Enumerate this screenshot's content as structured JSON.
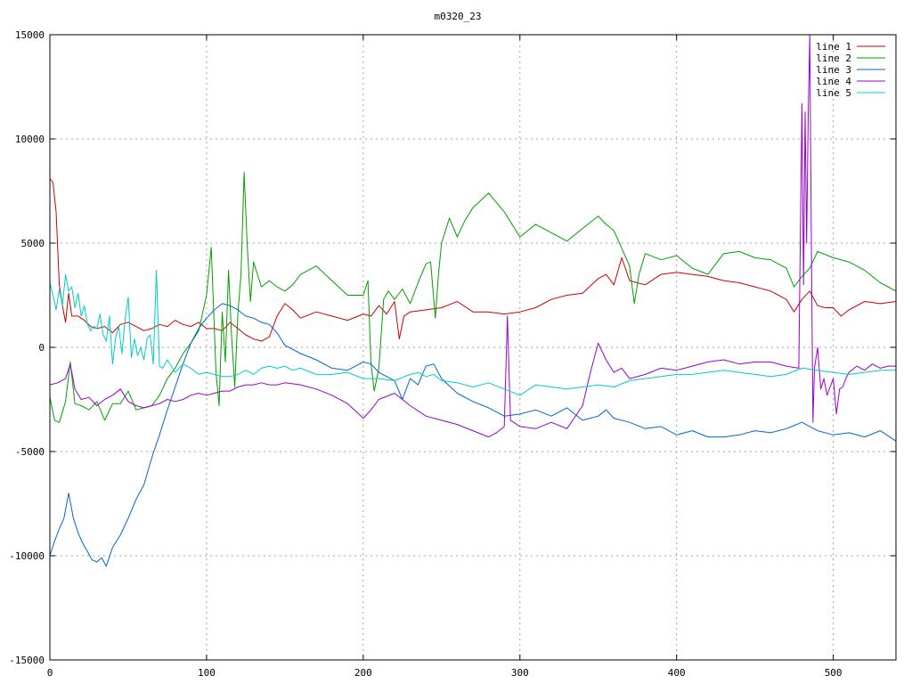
{
  "chart_data": {
    "type": "line",
    "title": "m0320_23",
    "xlabel": "",
    "ylabel": "",
    "xlim": [
      0,
      540
    ],
    "ylim": [
      -15000,
      15000
    ],
    "xticks": [
      0,
      100,
      200,
      300,
      400,
      500
    ],
    "yticks": [
      -15000,
      -10000,
      -5000,
      0,
      5000,
      10000,
      15000
    ],
    "grid": true,
    "legend_position": "top-right",
    "series": [
      {
        "name": "line 1",
        "color": "#cc0000",
        "x": [
          0,
          2,
          4,
          6,
          8,
          10,
          12,
          14,
          18,
          22,
          26,
          30,
          35,
          40,
          45,
          50,
          55,
          60,
          65,
          70,
          75,
          80,
          85,
          90,
          95,
          100,
          105,
          110,
          115,
          120,
          125,
          130,
          135,
          140,
          145,
          150,
          155,
          160,
          170,
          180,
          190,
          200,
          205,
          210,
          215,
          220,
          223,
          226,
          230,
          240,
          250,
          260,
          270,
          280,
          290,
          300,
          310,
          320,
          330,
          340,
          350,
          355,
          360,
          365,
          370,
          375,
          380,
          390,
          400,
          410,
          420,
          430,
          440,
          450,
          460,
          470,
          475,
          480,
          485,
          490,
          495,
          500,
          505,
          510,
          520,
          530,
          540
        ],
        "y": [
          8100,
          7900,
          6500,
          3000,
          2000,
          1200,
          2600,
          1500,
          1500,
          1300,
          1000,
          900,
          1000,
          700,
          1100,
          1200,
          1000,
          800,
          900,
          1100,
          1000,
          1300,
          1100,
          1000,
          1200,
          900,
          900,
          800,
          1200,
          900,
          600,
          400,
          300,
          500,
          1500,
          2100,
          1800,
          1400,
          1700,
          1500,
          1300,
          1600,
          1500,
          2000,
          1600,
          2200,
          400,
          1500,
          1700,
          1800,
          1900,
          2200,
          1700,
          1700,
          1600,
          1700,
          1900,
          2300,
          2500,
          2600,
          3300,
          3500,
          3000,
          4300,
          3200,
          3100,
          3000,
          3500,
          3600,
          3500,
          3400,
          3200,
          3100,
          2900,
          2700,
          2300,
          1700,
          2300,
          2700,
          2000,
          1900,
          1900,
          1500,
          1800,
          2200,
          2100,
          2200
        ]
      },
      {
        "name": "line 2",
        "color": "#00a000",
        "x": [
          0,
          3,
          6,
          10,
          13,
          16,
          20,
          25,
          30,
          35,
          40,
          45,
          50,
          55,
          60,
          65,
          70,
          75,
          80,
          85,
          90,
          95,
          100,
          103,
          106,
          108,
          110,
          112,
          114,
          116,
          118,
          120,
          122,
          124,
          126,
          128,
          130,
          135,
          140,
          145,
          150,
          155,
          160,
          170,
          180,
          190,
          200,
          203,
          205,
          207,
          210,
          213,
          216,
          220,
          225,
          230,
          235,
          240,
          243,
          246,
          248,
          250,
          255,
          260,
          265,
          270,
          280,
          290,
          300,
          310,
          320,
          330,
          340,
          350,
          355,
          360,
          370,
          373,
          376,
          380,
          390,
          400,
          410,
          420,
          430,
          440,
          450,
          460,
          470,
          475,
          480,
          485,
          490,
          500,
          510,
          520,
          530,
          540
        ],
        "y": [
          -2400,
          -3500,
          -3600,
          -2600,
          -700,
          -2700,
          -2800,
          -3000,
          -2600,
          -3500,
          -2700,
          -2700,
          -2100,
          -3000,
          -2900,
          -2800,
          -2300,
          -1500,
          -1000,
          -300,
          200,
          800,
          2500,
          4800,
          -1200,
          -2800,
          1700,
          -700,
          3700,
          500,
          -1900,
          1600,
          3500,
          8400,
          4800,
          2200,
          4100,
          2900,
          3200,
          2900,
          2700,
          3000,
          3500,
          3900,
          3200,
          2500,
          2500,
          3200,
          -800,
          -2100,
          -1000,
          2300,
          2700,
          2300,
          2800,
          2100,
          3100,
          4000,
          4100,
          1400,
          3500,
          5000,
          6200,
          5300,
          6100,
          6700,
          7400,
          6500,
          5300,
          5900,
          5500,
          5100,
          5700,
          6300,
          5900,
          5600,
          3900,
          2100,
          3500,
          4500,
          4200,
          4400,
          3800,
          3500,
          4500,
          4600,
          4300,
          4200,
          3800,
          2900,
          3400,
          3800,
          4600,
          4300,
          4100,
          3700,
          3100,
          2700
        ]
      },
      {
        "name": "line 3",
        "color": "#0066cc",
        "x": [
          0,
          3,
          6,
          9,
          12,
          15,
          18,
          21,
          24,
          27,
          30,
          33,
          36,
          40,
          45,
          50,
          55,
          60,
          65,
          70,
          75,
          80,
          85,
          90,
          95,
          100,
          105,
          110,
          115,
          120,
          125,
          130,
          135,
          140,
          145,
          150,
          160,
          170,
          180,
          190,
          200,
          205,
          210,
          215,
          220,
          225,
          230,
          235,
          240,
          245,
          250,
          260,
          270,
          280,
          290,
          300,
          310,
          320,
          330,
          340,
          350,
          355,
          360,
          370,
          380,
          390,
          400,
          410,
          420,
          430,
          440,
          450,
          460,
          470,
          480,
          490,
          500,
          510,
          520,
          530,
          540
        ],
        "y": [
          -10000,
          -9300,
          -8700,
          -8200,
          -7000,
          -8200,
          -8900,
          -9400,
          -9800,
          -10200,
          -10300,
          -10100,
          -10500,
          -9600,
          -9000,
          -8200,
          -7300,
          -6600,
          -5300,
          -4200,
          -3000,
          -1900,
          -800,
          200,
          900,
          1400,
          1800,
          2100,
          2000,
          1800,
          1500,
          1400,
          1200,
          1100,
          700,
          100,
          -300,
          -600,
          -1000,
          -1100,
          -700,
          -800,
          -1200,
          -1400,
          -1600,
          -2500,
          -1500,
          -1800,
          -900,
          -800,
          -1500,
          -2200,
          -2600,
          -2900,
          -3300,
          -3200,
          -3000,
          -3300,
          -2900,
          -3500,
          -3300,
          -3000,
          -3400,
          -3600,
          -3900,
          -3800,
          -4200,
          -4000,
          -4300,
          -4300,
          -4200,
          -4000,
          -4100,
          -3900,
          -3600,
          -4000,
          -4200,
          -4100,
          -4300,
          -4000,
          -4500
        ]
      },
      {
        "name": "line 4",
        "color": "#9900cc",
        "x": [
          0,
          5,
          10,
          13,
          16,
          20,
          25,
          30,
          35,
          40,
          45,
          50,
          55,
          60,
          65,
          70,
          75,
          80,
          85,
          90,
          95,
          100,
          105,
          110,
          115,
          120,
          125,
          130,
          135,
          140,
          145,
          150,
          160,
          170,
          180,
          190,
          200,
          205,
          210,
          220,
          230,
          240,
          250,
          260,
          270,
          280,
          285,
          290,
          292,
          294,
          296,
          300,
          310,
          320,
          330,
          340,
          345,
          350,
          355,
          360,
          365,
          370,
          380,
          390,
          400,
          410,
          420,
          430,
          440,
          450,
          460,
          470,
          478,
          480,
          481,
          482,
          483,
          484,
          485,
          486,
          487,
          488,
          490,
          492,
          494,
          496,
          498,
          500,
          502,
          504,
          506,
          508,
          510,
          515,
          520,
          525,
          530,
          535,
          540
        ],
        "y": [
          -1800,
          -1700,
          -1500,
          -800,
          -2000,
          -2500,
          -2400,
          -2800,
          -2500,
          -2300,
          -2000,
          -2600,
          -2800,
          -2900,
          -2800,
          -2700,
          -2500,
          -2600,
          -2500,
          -2300,
          -2200,
          -2300,
          -2200,
          -2100,
          -2100,
          -1900,
          -1800,
          -1800,
          -1700,
          -1800,
          -1800,
          -1700,
          -1800,
          -2000,
          -2300,
          -2700,
          -3400,
          -3000,
          -2500,
          -2200,
          -2800,
          -3300,
          -3500,
          -3700,
          -4000,
          -4300,
          -4100,
          -3800,
          1500,
          -3500,
          -3600,
          -3800,
          -3900,
          -3600,
          -3900,
          -2800,
          -1200,
          200,
          -600,
          -1200,
          -1000,
          -1500,
          -1300,
          -1000,
          -1100,
          -900,
          -700,
          -600,
          -800,
          -700,
          -700,
          -900,
          -1000,
          11700,
          3000,
          11300,
          5000,
          11200,
          15000,
          5000,
          -3600,
          -1000,
          0,
          -2000,
          -1500,
          -2300,
          -1900,
          -1500,
          -3200,
          -2000,
          -1900,
          -1500,
          -1200,
          -900,
          -1100,
          -800,
          -1000,
          -900,
          -900
        ]
      },
      {
        "name": "line 5",
        "color": "#00cccc",
        "x": [
          0,
          2,
          4,
          6,
          8,
          10,
          12,
          14,
          16,
          18,
          20,
          22,
          24,
          26,
          28,
          30,
          32,
          34,
          36,
          38,
          40,
          42,
          44,
          46,
          48,
          50,
          52,
          54,
          56,
          58,
          60,
          62,
          64,
          66,
          68,
          70,
          72,
          75,
          80,
          85,
          90,
          95,
          100,
          105,
          110,
          115,
          120,
          125,
          130,
          135,
          140,
          145,
          150,
          155,
          160,
          170,
          180,
          190,
          200,
          210,
          220,
          230,
          235,
          240,
          245,
          250,
          260,
          270,
          280,
          290,
          300,
          310,
          320,
          330,
          340,
          350,
          360,
          370,
          380,
          390,
          400,
          410,
          420,
          430,
          440,
          450,
          460,
          470,
          480,
          490,
          500,
          510,
          520,
          530,
          540
        ],
        "y": [
          3100,
          2500,
          1800,
          2800,
          2000,
          3500,
          2700,
          2900,
          1900,
          2600,
          1500,
          2000,
          1100,
          800,
          1000,
          900,
          1600,
          600,
          300,
          1500,
          -800,
          500,
          1000,
          -300,
          1300,
          2400,
          -500,
          400,
          -400,
          0,
          -600,
          400,
          600,
          -800,
          3700,
          -900,
          -1000,
          -600,
          -1200,
          -800,
          -1000,
          -1300,
          -1200,
          -1300,
          -1400,
          -1400,
          -1300,
          -1100,
          -1300,
          -1000,
          -900,
          -1000,
          -900,
          -1100,
          -1000,
          -1300,
          -1300,
          -1200,
          -1500,
          -1500,
          -1600,
          -1300,
          -1200,
          -1400,
          -1300,
          -1600,
          -1700,
          -1900,
          -1700,
          -2000,
          -2300,
          -1800,
          -1900,
          -2000,
          -1900,
          -1800,
          -1900,
          -1600,
          -1500,
          -1400,
          -1300,
          -1300,
          -1200,
          -1100,
          -1200,
          -1300,
          -1400,
          -1300,
          -1000,
          -1100,
          -1200,
          -1300,
          -1200,
          -1100,
          -1100
        ]
      }
    ]
  }
}
